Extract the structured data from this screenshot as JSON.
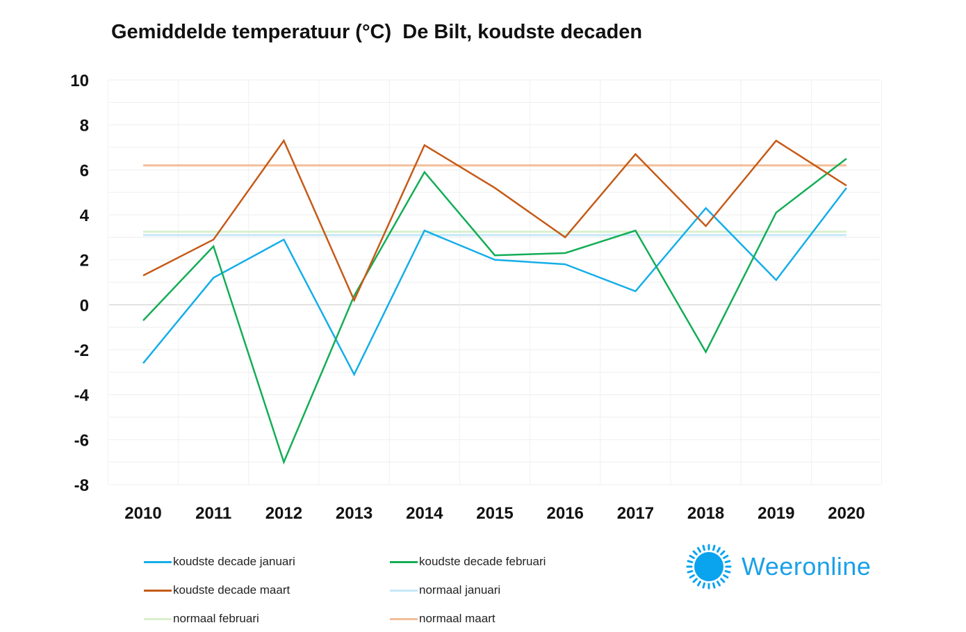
{
  "chart_data": {
    "type": "line",
    "title": "Gemiddelde temperatuur (°C)  De Bilt, koudste decaden",
    "categories": [
      "2010",
      "2011",
      "2012",
      "2013",
      "2014",
      "2015",
      "2016",
      "2017",
      "2018",
      "2019",
      "2020"
    ],
    "ylim": [
      -8,
      10
    ],
    "yticks": [
      10,
      8,
      6,
      4,
      2,
      0,
      -2,
      -4,
      -6,
      -8
    ],
    "series": [
      {
        "name": "normaal februari",
        "color": "#d9f0cc",
        "values": [
          3.25,
          3.25,
          3.25,
          3.25,
          3.25,
          3.25,
          3.25,
          3.25,
          3.25,
          3.25,
          3.25
        ]
      },
      {
        "name": "normaal januari",
        "color": "#c6e8f8",
        "values": [
          3.1,
          3.1,
          3.1,
          3.1,
          3.1,
          3.1,
          3.1,
          3.1,
          3.1,
          3.1,
          3.1
        ]
      },
      {
        "name": "normaal maart",
        "color": "#f3be98",
        "values": [
          6.2,
          6.2,
          6.2,
          6.2,
          6.2,
          6.2,
          6.2,
          6.2,
          6.2,
          6.2,
          6.2
        ]
      },
      {
        "name": "koudste decade januari",
        "color": "#14aee8",
        "values": [
          -2.6,
          1.2,
          2.9,
          -3.1,
          3.3,
          2.0,
          1.8,
          0.6,
          4.3,
          1.1,
          5.2
        ]
      },
      {
        "name": "koudste decade februari",
        "color": "#13ad55",
        "values": [
          -0.7,
          2.6,
          -7.0,
          0.4,
          5.9,
          2.2,
          2.3,
          3.3,
          -2.1,
          4.1,
          6.5
        ]
      },
      {
        "name": "koudste decade maart",
        "color": "#c55a17",
        "values": [
          1.3,
          2.9,
          7.3,
          0.2,
          7.1,
          5.2,
          3.0,
          6.7,
          3.5,
          7.3,
          5.3
        ]
      }
    ]
  },
  "legend": [
    {
      "label": "koudste decade januari",
      "color": "#14aee8"
    },
    {
      "label": "koudste decade februari",
      "color": "#13ad55"
    },
    {
      "label": "koudste decade maart",
      "color": "#c55a17"
    },
    {
      "label": "normaal januari",
      "color": "#c6e8f8"
    },
    {
      "label": "normaal februari",
      "color": "#d9f0cc"
    },
    {
      "label": "normaal maart",
      "color": "#f3be98"
    }
  ],
  "logo": {
    "text": "Weeronline",
    "color": "#1aa0e8"
  }
}
